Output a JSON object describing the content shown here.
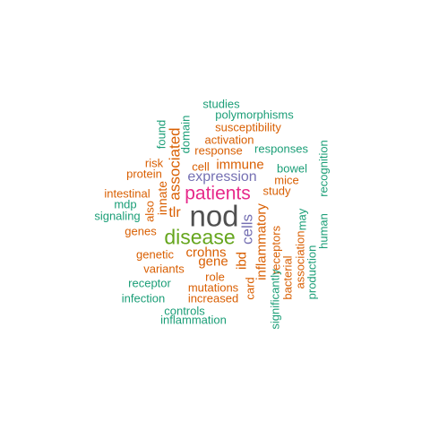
{
  "palette": {
    "c1": "#1b9e77",
    "c2": "#d95f02",
    "c3": "#7570b3",
    "c4": "#e7298a",
    "c5": "#66a61e",
    "c6": "#505050"
  },
  "words": {
    "nod": "nod",
    "disease": "disease",
    "patients": "patients",
    "expression": "expression",
    "cells": "cells",
    "associated": "associated",
    "immune": "immune",
    "inflammatory": "inflammatory",
    "crohns": "crohns",
    "gene": "gene",
    "ibd": "ibd",
    "tlr": "tlr",
    "innate": "innate",
    "card": "card",
    "receptors": "receptors",
    "study": "study",
    "mice": "mice",
    "bowel": "bowel",
    "response": "response",
    "responses": "responses",
    "activation": "activation",
    "susceptibility": "susceptibility",
    "polymorphisms": "polymorphisms",
    "studies": "studies",
    "domain": "domain",
    "found": "found",
    "cell": "cell",
    "risk": "risk",
    "protein": "protein",
    "intestinal": "intestinal",
    "mdp": "mdp",
    "also": "also",
    "signaling": "signaling",
    "genes": "genes",
    "genetic": "genetic",
    "variants": "variants",
    "role": "role",
    "receptor": "receptor",
    "mutations": "mutations",
    "increased": "increased",
    "infection": "infection",
    "controls": "controls",
    "inflammation": "inflammation",
    "significantly": "significantly",
    "bacterial": "bacterial",
    "association": "association",
    "production": "production",
    "may": "may",
    "human": "human",
    "recognition": "recognition"
  }
}
